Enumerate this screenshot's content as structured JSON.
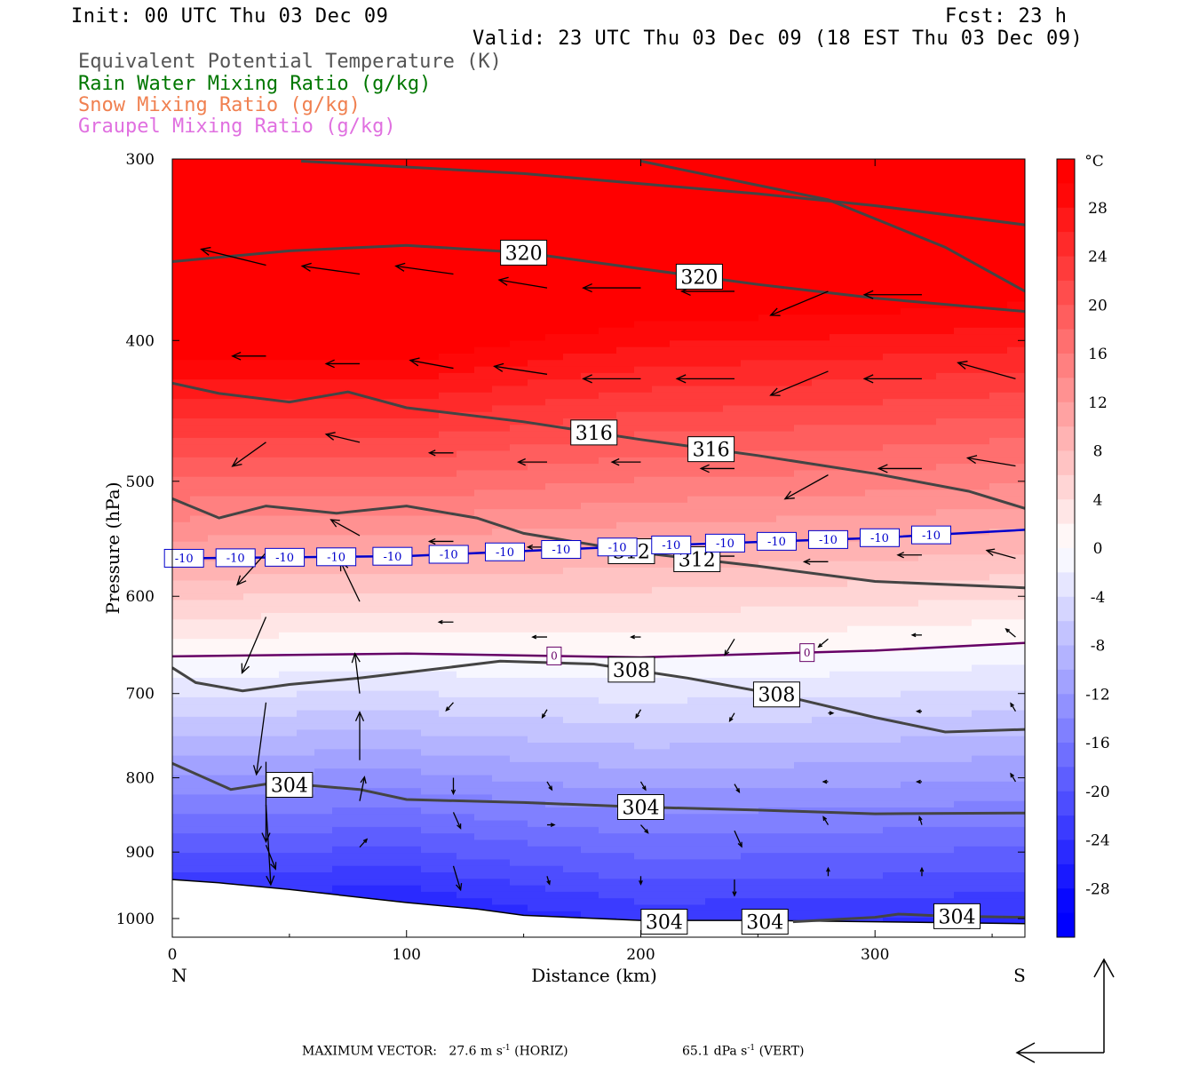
{
  "header": {
    "init": "Init: 00 UTC Thu 03 Dec 09",
    "fcst": "Fcst:   23 h",
    "valid": "Valid: 23 UTC Thu 03 Dec 09 (18 EST Thu 03 Dec 09)"
  },
  "legend": [
    {
      "label": "Equivalent Potential Temperature (K)",
      "color": "#555555"
    },
    {
      "label": "Rain Water Mixing Ratio (g/kg)",
      "color": "#007700"
    },
    {
      "label": "Snow Mixing Ratio (g/kg)",
      "color": "#f08050"
    },
    {
      "label": "Graupel Mixing Ratio (g/kg)",
      "color": "#e070e0"
    }
  ],
  "chart_data": {
    "type": "cross-section",
    "xlabel": "Distance (km)",
    "ylabel": "Pressure (hPa)",
    "xlim": [
      0,
      364
    ],
    "ylim": [
      300,
      1030
    ],
    "y_log_scale": true,
    "x_ticks": [
      0,
      100,
      200,
      300
    ],
    "y_ticks": [
      300,
      400,
      500,
      600,
      700,
      800,
      900,
      1000
    ],
    "left_endpoint": "N",
    "right_endpoint": "S",
    "shading_variable": "Temperature",
    "colorbar": {
      "unit": "°C",
      "ticks": [
        28,
        24,
        20,
        16,
        12,
        8,
        4,
        0,
        -4,
        -8,
        -12,
        -16,
        -20,
        -24,
        -28
      ]
    },
    "theta_e_contours": [
      {
        "value": 320,
        "labels": [
          "320",
          "320"
        ],
        "points": [
          [
            0,
            353
          ],
          [
            50,
            347
          ],
          [
            100,
            344
          ],
          [
            150,
            348
          ],
          [
            200,
            357
          ],
          [
            250,
            366
          ],
          [
            300,
            374
          ],
          [
            364,
            382
          ]
        ]
      },
      {
        "value": 320,
        "labels": [],
        "points": [
          [
            55,
            301
          ],
          [
            150,
            307
          ],
          [
            250,
            317
          ],
          [
            300,
            323
          ],
          [
            364,
            333
          ]
        ]
      },
      {
        "value": 320,
        "labels": [],
        "points": [
          [
            200,
            301
          ],
          [
            280,
            320
          ],
          [
            330,
            345
          ],
          [
            364,
            370
          ]
        ]
      },
      {
        "value": 316,
        "labels": [
          "316",
          "316"
        ],
        "points": [
          [
            0,
            428
          ],
          [
            20,
            435
          ],
          [
            50,
            441
          ],
          [
            75,
            434
          ],
          [
            100,
            445
          ],
          [
            150,
            455
          ],
          [
            200,
            468
          ],
          [
            250,
            480
          ],
          [
            300,
            494
          ],
          [
            340,
            508
          ],
          [
            364,
            522
          ]
        ]
      },
      {
        "value": 312,
        "labels": [
          "312",
          "312"
        ],
        "points": [
          [
            0,
            514
          ],
          [
            20,
            530
          ],
          [
            40,
            520
          ],
          [
            70,
            526
          ],
          [
            100,
            520
          ],
          [
            130,
            530
          ],
          [
            150,
            543
          ],
          [
            200,
            560
          ],
          [
            250,
            572
          ],
          [
            300,
            586
          ],
          [
            364,
            592
          ]
        ]
      },
      {
        "value": 308,
        "labels": [
          "308",
          "308"
        ],
        "points": [
          [
            0,
            672
          ],
          [
            10,
            688
          ],
          [
            30,
            697
          ],
          [
            50,
            690
          ],
          [
            80,
            683
          ],
          [
            100,
            677
          ],
          [
            140,
            665
          ],
          [
            180,
            668
          ],
          [
            220,
            683
          ],
          [
            260,
            702
          ],
          [
            300,
            727
          ],
          [
            330,
            744
          ],
          [
            364,
            741
          ]
        ]
      },
      {
        "value": 304,
        "labels": [
          "304",
          "304"
        ],
        "points": [
          [
            0,
            782
          ],
          [
            10,
            795
          ],
          [
            25,
            815
          ],
          [
            40,
            808
          ],
          [
            60,
            810
          ],
          [
            80,
            815
          ],
          [
            100,
            828
          ],
          [
            150,
            832
          ],
          [
            200,
            838
          ],
          [
            250,
            842
          ],
          [
            300,
            847
          ],
          [
            364,
            846
          ]
        ]
      },
      {
        "value": 304,
        "labels": [
          "304",
          "304",
          "304"
        ],
        "points": [
          [
            265,
            1005
          ],
          [
            300,
            998
          ],
          [
            310,
            993
          ],
          [
            330,
            996
          ],
          [
            364,
            998
          ]
        ]
      }
    ],
    "temperature_contours": [
      {
        "value": -10,
        "color": "#0000cc",
        "labels": [
          "-10",
          "-10",
          "-10",
          "-10",
          "-10",
          "-10",
          "-10",
          "-10",
          "-10",
          "-10",
          "-10",
          "-10",
          "-10",
          "-10",
          "-10"
        ],
        "points": [
          [
            0,
            565
          ],
          [
            100,
            563
          ],
          [
            200,
            554
          ],
          [
            300,
            547
          ],
          [
            364,
            540
          ]
        ]
      },
      {
        "value": 0,
        "color": "#660066",
        "labels": [
          "0",
          "0"
        ],
        "points": [
          [
            0,
            660
          ],
          [
            100,
            657
          ],
          [
            200,
            661
          ],
          [
            300,
            654
          ],
          [
            364,
            646
          ]
        ]
      }
    ],
    "terrain_hPa": [
      [
        0,
        940
      ],
      [
        20,
        945
      ],
      [
        50,
        955
      ],
      [
        100,
        975
      ],
      [
        130,
        985
      ],
      [
        150,
        995
      ],
      [
        200,
        1003
      ],
      [
        250,
        1003
      ],
      [
        300,
        1005
      ],
      [
        364,
        1008
      ]
    ],
    "wind_vectors": [
      {
        "x": 40,
        "p": 355,
        "u": -27,
        "w": 2
      },
      {
        "x": 80,
        "p": 360,
        "u": -24,
        "w": 1
      },
      {
        "x": 120,
        "p": 360,
        "u": -24,
        "w": 1
      },
      {
        "x": 160,
        "p": 368,
        "u": -20,
        "w": 1
      },
      {
        "x": 200,
        "p": 368,
        "u": -24,
        "w": 0
      },
      {
        "x": 240,
        "p": 370,
        "u": -22,
        "w": 0
      },
      {
        "x": 280,
        "p": 370,
        "u": -24,
        "w": -3
      },
      {
        "x": 320,
        "p": 372,
        "u": -24,
        "w": 0
      },
      {
        "x": 360,
        "p": 425,
        "u": -24,
        "w": 2
      },
      {
        "x": 320,
        "p": 425,
        "u": -24,
        "w": 0
      },
      {
        "x": 280,
        "p": 420,
        "u": -24,
        "w": -3
      },
      {
        "x": 240,
        "p": 425,
        "u": -24,
        "w": 0
      },
      {
        "x": 200,
        "p": 425,
        "u": -24,
        "w": 0
      },
      {
        "x": 160,
        "p": 422,
        "u": -22,
        "w": 1
      },
      {
        "x": 120,
        "p": 418,
        "u": -18,
        "w": 1
      },
      {
        "x": 80,
        "p": 415,
        "u": -14,
        "w": 0
      },
      {
        "x": 40,
        "p": 410,
        "u": -14,
        "w": 0
      },
      {
        "x": 40,
        "p": 470,
        "u": -14,
        "w": -3
      },
      {
        "x": 80,
        "p": 470,
        "u": -14,
        "w": 1
      },
      {
        "x": 120,
        "p": 478,
        "u": -10,
        "w": 0
      },
      {
        "x": 160,
        "p": 485,
        "u": -12,
        "w": 0
      },
      {
        "x": 200,
        "p": 485,
        "u": -12,
        "w": 0
      },
      {
        "x": 240,
        "p": 490,
        "u": -14,
        "w": 0
      },
      {
        "x": 280,
        "p": 495,
        "u": -18,
        "w": -3
      },
      {
        "x": 320,
        "p": 490,
        "u": -18,
        "w": 0
      },
      {
        "x": 360,
        "p": 488,
        "u": -20,
        "w": 1
      },
      {
        "x": 40,
        "p": 560,
        "u": -12,
        "w": -4
      },
      {
        "x": 80,
        "p": 545,
        "u": -12,
        "w": 2
      },
      {
        "x": 120,
        "p": 550,
        "u": -10,
        "w": 0
      },
      {
        "x": 160,
        "p": 555,
        "u": -8,
        "w": 0
      },
      {
        "x": 200,
        "p": 558,
        "u": -12,
        "w": 0
      },
      {
        "x": 240,
        "p": 563,
        "u": -12,
        "w": 0
      },
      {
        "x": 280,
        "p": 568,
        "u": -10,
        "w": 0
      },
      {
        "x": 320,
        "p": 562,
        "u": -10,
        "w": 0
      },
      {
        "x": 360,
        "p": 565,
        "u": -12,
        "w": 1
      },
      {
        "x": 40,
        "p": 620,
        "u": -10,
        "w": -7
      },
      {
        "x": 80,
        "p": 605,
        "u": -8,
        "w": 5
      },
      {
        "x": 120,
        "p": 625,
        "u": -6,
        "w": 0
      },
      {
        "x": 160,
        "p": 640,
        "u": -6,
        "w": 0
      },
      {
        "x": 200,
        "p": 640,
        "u": -4,
        "w": 0
      },
      {
        "x": 240,
        "p": 642,
        "u": -4,
        "w": -2
      },
      {
        "x": 280,
        "p": 642,
        "u": -4,
        "w": -1
      },
      {
        "x": 320,
        "p": 638,
        "u": -4,
        "w": 0
      },
      {
        "x": 360,
        "p": 640,
        "u": -4,
        "w": 1
      },
      {
        "x": 40,
        "p": 710,
        "u": -4,
        "w": -9
      },
      {
        "x": 80,
        "p": 700,
        "u": -2,
        "w": 5
      },
      {
        "x": 120,
        "p": 710,
        "u": -3,
        "w": -1
      },
      {
        "x": 160,
        "p": 718,
        "u": -2,
        "w": -1
      },
      {
        "x": 200,
        "p": 718,
        "u": -2,
        "w": -1
      },
      {
        "x": 240,
        "p": 722,
        "u": -2,
        "w": -1
      },
      {
        "x": 280,
        "p": 722,
        "u": 2,
        "w": 0
      },
      {
        "x": 320,
        "p": 720,
        "u": -2,
        "w": 0
      },
      {
        "x": 360,
        "p": 720,
        "u": -2,
        "w": 1
      },
      {
        "x": 40,
        "p": 780,
        "u": 0,
        "w": -10
      },
      {
        "x": 80,
        "p": 778,
        "u": 0,
        "w": 6
      },
      {
        "x": 120,
        "p": 800,
        "u": 0,
        "w": -2
      },
      {
        "x": 160,
        "p": 805,
        "u": 2,
        "w": -1
      },
      {
        "x": 200,
        "p": 805,
        "u": 2,
        "w": -1
      },
      {
        "x": 240,
        "p": 808,
        "u": 2,
        "w": -1
      },
      {
        "x": 280,
        "p": 805,
        "u": -2,
        "w": 0
      },
      {
        "x": 320,
        "p": 805,
        "u": -2,
        "w": 0
      },
      {
        "x": 360,
        "p": 805,
        "u": -2,
        "w": 1
      },
      {
        "x": 40,
        "p": 835,
        "u": 2,
        "w": -10
      },
      {
        "x": 80,
        "p": 830,
        "u": 2,
        "w": 3
      },
      {
        "x": 120,
        "p": 845,
        "u": 3,
        "w": -2
      },
      {
        "x": 160,
        "p": 862,
        "u": 3,
        "w": 0
      },
      {
        "x": 200,
        "p": 862,
        "u": 3,
        "w": -1
      },
      {
        "x": 240,
        "p": 870,
        "u": 3,
        "w": -2
      },
      {
        "x": 280,
        "p": 862,
        "u": -2,
        "w": 1
      },
      {
        "x": 320,
        "p": 862,
        "u": -1,
        "w": 1
      },
      {
        "x": 40,
        "p": 890,
        "u": 4,
        "w": -3
      },
      {
        "x": 80,
        "p": 893,
        "u": 3,
        "w": 1
      },
      {
        "x": 120,
        "p": 920,
        "u": 3,
        "w": -3
      },
      {
        "x": 160,
        "p": 935,
        "u": 1,
        "w": -1
      },
      {
        "x": 200,
        "p": 935,
        "u": 0,
        "w": -1
      },
      {
        "x": 240,
        "p": 940,
        "u": 0,
        "w": -2
      },
      {
        "x": 280,
        "p": 935,
        "u": 0,
        "w": 1
      },
      {
        "x": 320,
        "p": 935,
        "u": 0,
        "w": 1
      }
    ]
  },
  "footer": {
    "max_vector_label": "MAXIMUM VECTOR:",
    "horiz_value": "27.6 m s",
    "horiz_exp": "-1",
    "horiz_suffix": "(HORIZ)",
    "vert_value": "65.1 dPa s",
    "vert_exp": "-1",
    "vert_suffix": "(VERT)"
  }
}
